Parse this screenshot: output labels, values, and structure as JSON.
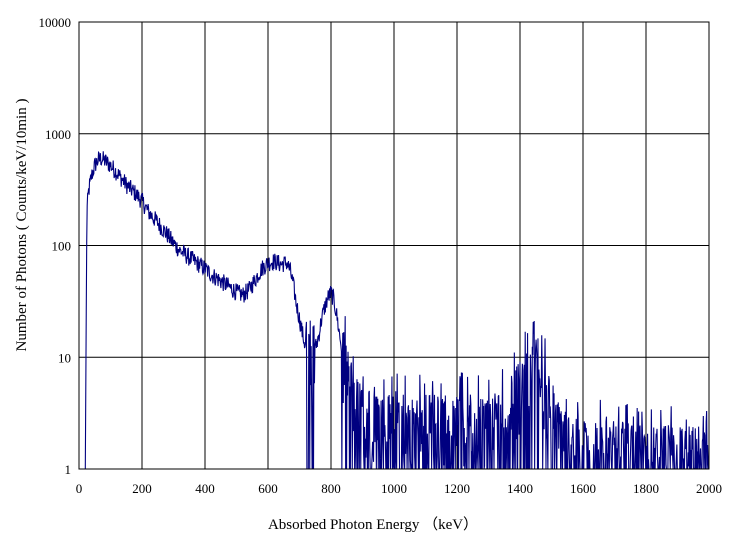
{
  "chart_data": {
    "type": "line",
    "title": "",
    "xlabel": "Absorbed Photon Energy （keV）",
    "ylabel": "Number  of Photons ( Counts/keV/10min  )",
    "xlim": [
      0,
      2000
    ],
    "ylim": [
      1,
      10000
    ],
    "yscale": "log",
    "grid": true,
    "legend": "none",
    "x_ticks": [
      0,
      200,
      400,
      600,
      800,
      1000,
      1200,
      1400,
      1600,
      1800,
      2000
    ],
    "x_tick_labels": [
      "0",
      "200",
      "400",
      "600",
      "800",
      "1000",
      "1200",
      "1400",
      "1600",
      "1800",
      "2000"
    ],
    "y_ticks": [
      1,
      10,
      100,
      1000,
      10000
    ],
    "y_tick_labels": [
      "1",
      "10",
      "100",
      "1000",
      "10000"
    ],
    "series": [
      {
        "color": "#000080",
        "x": [
          20,
          25,
          30,
          40,
          50,
          60,
          70,
          80,
          100,
          120,
          150,
          180,
          200,
          220,
          250,
          280,
          300,
          320,
          350,
          380,
          400,
          420,
          450,
          480,
          500,
          520,
          540,
          560,
          580,
          600,
          620,
          640,
          660,
          670,
          680,
          690,
          700,
          710,
          720,
          730,
          740,
          750,
          760,
          770,
          780,
          790,
          800,
          810,
          820,
          830,
          840,
          850,
          860,
          870,
          880,
          900,
          950,
          1000,
          1050,
          1100,
          1150,
          1200,
          1250,
          1300,
          1350,
          1400,
          1420,
          1440,
          1450,
          1460,
          1470,
          1480,
          1500,
          1520,
          1550,
          1600,
          1650,
          1700,
          1750,
          1800,
          1850,
          1900,
          1950,
          2000
        ],
        "y": [
          1,
          200,
          300,
          420,
          520,
          580,
          600,
          580,
          520,
          450,
          350,
          290,
          250,
          200,
          160,
          125,
          105,
          90,
          78,
          68,
          62,
          55,
          48,
          42,
          38,
          36,
          40,
          50,
          62,
          70,
          72,
          68,
          70,
          60,
          45,
          30,
          22,
          16,
          12,
          10,
          10,
          12,
          15,
          22,
          28,
          34,
          38,
          32,
          22,
          14,
          9,
          7,
          5,
          4,
          3.5,
          3,
          2.5,
          2.5,
          2.5,
          2.5,
          2.5,
          2.5,
          2.5,
          2.5,
          3,
          5,
          6,
          7,
          8,
          8,
          6,
          5,
          3,
          2.2,
          1.8,
          1.5,
          1.4,
          1.4,
          1.4,
          1.3,
          1.3,
          1.3,
          1.3,
          1.3
        ]
      }
    ]
  }
}
